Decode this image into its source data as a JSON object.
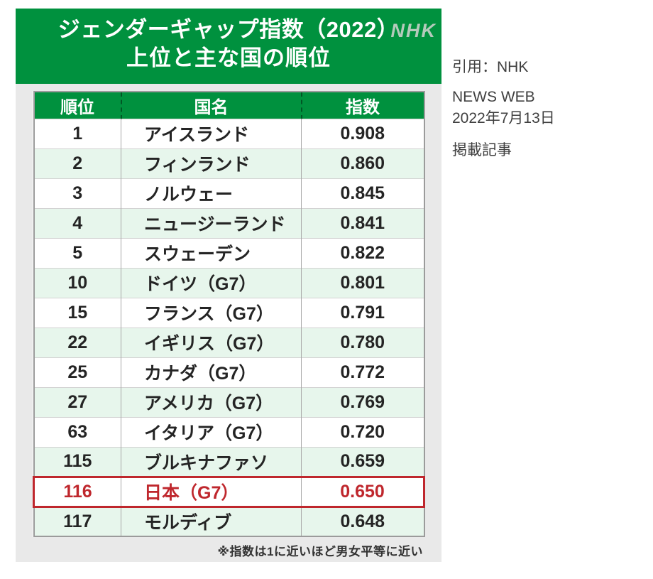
{
  "colors": {
    "accent_green": "#00913e",
    "alt_row_green": "#e7f6ec",
    "card_gray": "#e9e9e9",
    "highlight_red": "#bf272d",
    "logo_gray_green": "#b4cabb"
  },
  "card": {
    "header": {
      "title_line1": "ジェンダーギャップ指数（2022）",
      "title_line2": "上位と主な国の順位",
      "logo_text": "NHK"
    },
    "footnote": "※指数は1に近いほど男女平等に近い"
  },
  "citation": {
    "line1": "引用：NHK",
    "line2": "NEWS WEB",
    "line3": "2022年7月13日",
    "line4": "掲載記事"
  },
  "chart_data": {
    "type": "table",
    "title": "ジェンダーギャップ指数（2022） 上位と主な国の順位",
    "columns": [
      "順位",
      "国名",
      "指数"
    ],
    "rows": [
      {
        "rank": "1",
        "country": "アイスランド",
        "index": "0.908",
        "highlight": false
      },
      {
        "rank": "2",
        "country": "フィンランド",
        "index": "0.860",
        "highlight": false
      },
      {
        "rank": "3",
        "country": "ノルウェー",
        "index": "0.845",
        "highlight": false
      },
      {
        "rank": "4",
        "country": "ニュージーランド",
        "index": "0.841",
        "highlight": false
      },
      {
        "rank": "5",
        "country": "スウェーデン",
        "index": "0.822",
        "highlight": false
      },
      {
        "rank": "10",
        "country": "ドイツ（G7）",
        "index": "0.801",
        "highlight": false
      },
      {
        "rank": "15",
        "country": "フランス（G7）",
        "index": "0.791",
        "highlight": false
      },
      {
        "rank": "22",
        "country": "イギリス（G7）",
        "index": "0.780",
        "highlight": false
      },
      {
        "rank": "25",
        "country": "カナダ（G7）",
        "index": "0.772",
        "highlight": false
      },
      {
        "rank": "27",
        "country": "アメリカ（G7）",
        "index": "0.769",
        "highlight": false
      },
      {
        "rank": "63",
        "country": "イタリア（G7）",
        "index": "0.720",
        "highlight": false
      },
      {
        "rank": "115",
        "country": "ブルキナファソ",
        "index": "0.659",
        "highlight": false
      },
      {
        "rank": "116",
        "country": "日本（G7）",
        "index": "0.650",
        "highlight": true
      },
      {
        "rank": "117",
        "country": "モルディブ",
        "index": "0.648",
        "highlight": false
      }
    ],
    "note": "※指数は1に近いほど男女平等に近い",
    "source": "引用：NHK NEWS WEB 2022年7月13日 掲載記事",
    "highlighted_rank": 116
  }
}
